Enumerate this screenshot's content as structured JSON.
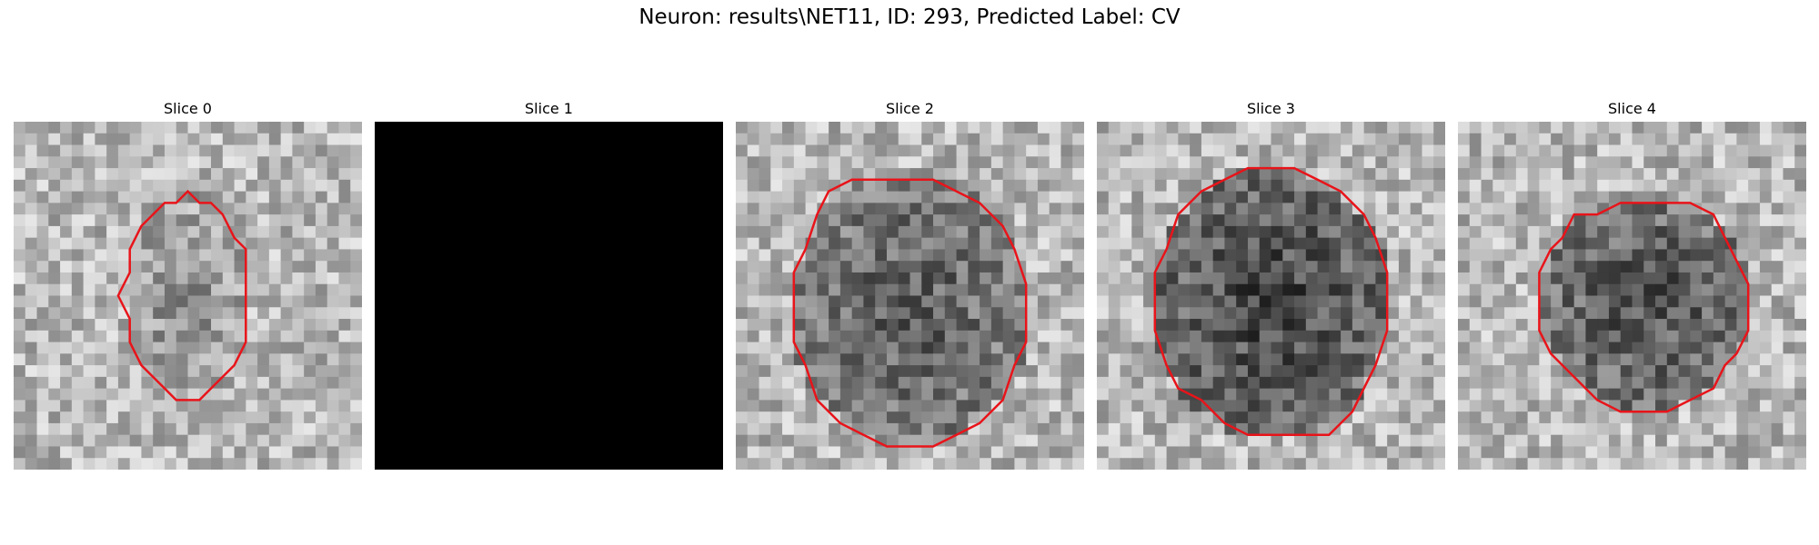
{
  "figure": {
    "title": "Neuron: results\\NET11, ID: 293, Predicted Label: CV"
  },
  "panels": [
    {
      "title": "Slice 0",
      "blank": false,
      "contour_color": "#e8141a",
      "dark_center": 0.55
    },
    {
      "title": "Slice 1",
      "blank": true
    },
    {
      "title": "Slice 2",
      "blank": false,
      "contour_color": "#e8141a",
      "dark_center": 0.35
    },
    {
      "title": "Slice 3",
      "blank": false,
      "contour_color": "#e8141a",
      "dark_center": 0.25
    },
    {
      "title": "Slice 4",
      "blank": false,
      "contour_color": "#e8141a",
      "dark_center": 0.3
    }
  ]
}
